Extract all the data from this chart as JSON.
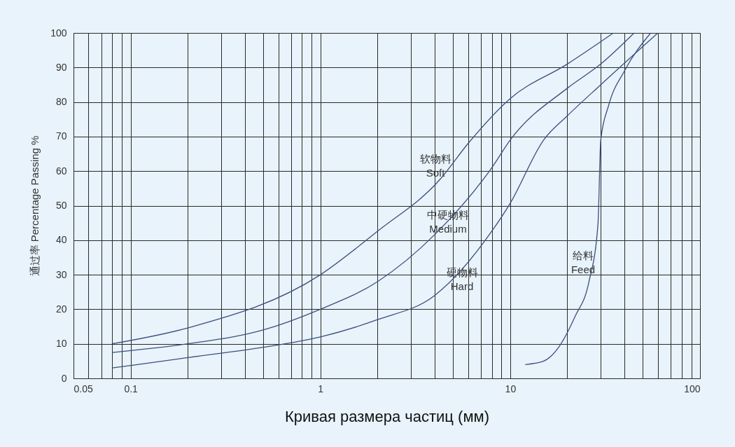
{
  "chart_data": {
    "type": "line",
    "xlabel": "Кривая размера частиц (мм)",
    "ylabel": "通过率 Percentage Passing %",
    "log": "x",
    "grid": true,
    "line_style": "solid",
    "marker": "none",
    "xlim": [
      0.05,
      100
    ],
    "xticks": [
      0.05,
      {
        "value": 0.06,
        "label": null
      },
      {
        "value": 0.07,
        "label": null
      },
      {
        "value": 0.08,
        "label": null
      },
      {
        "value": 0.09,
        "label": null
      },
      0.1,
      {
        "value": 0.2,
        "label": null
      },
      {
        "value": 0.3,
        "label": null
      },
      {
        "value": 0.4,
        "label": null
      },
      {
        "value": 0.5,
        "label": null
      },
      {
        "value": 0.6,
        "label": null
      },
      {
        "value": 0.7,
        "label": null
      },
      {
        "value": 0.8,
        "label": null
      },
      {
        "value": 0.9,
        "label": null
      },
      1,
      {
        "value": 2,
        "label": null
      },
      {
        "value": 3,
        "label": null
      },
      {
        "value": 4,
        "label": null
      },
      {
        "value": 5,
        "label": null
      },
      {
        "value": 6,
        "label": null
      },
      {
        "value": 7,
        "label": null
      },
      {
        "value": 8,
        "label": null
      },
      {
        "value": 9,
        "label": null
      },
      10,
      {
        "value": 20,
        "label": null
      },
      {
        "value": 30,
        "label": null
      },
      {
        "value": 40,
        "label": null
      },
      {
        "value": 50,
        "label": null
      },
      {
        "value": 60,
        "label": null
      },
      {
        "value": 70,
        "label": null
      },
      {
        "value": 80,
        "label": null
      },
      {
        "value": 90,
        "label": null
      },
      100
    ],
    "ylim": [
      0,
      100
    ],
    "yticks": [
      0,
      10,
      20,
      30,
      40,
      50,
      60,
      70,
      80,
      90,
      100
    ],
    "series": [
      {
        "color": "#3d4f7c",
        "x": [
          0.08,
          0.2,
          1,
          2,
          4.3,
          6,
          10,
          20,
          35
        ],
        "values": [
          10,
          14.6,
          30,
          42.6,
          57.8,
          68,
          81,
          91,
          100
        ]
      },
      {
        "color": "#3d4f7c",
        "x": [
          0.08,
          0.2,
          0.5,
          1,
          2,
          4,
          8,
          10,
          20,
          30,
          45
        ],
        "values": [
          7.5,
          10,
          14,
          20,
          28,
          41.6,
          61,
          69,
          84,
          91,
          100
        ]
      },
      {
        "color": "#3d4f7c",
        "x": [
          0.08,
          0.2,
          0.5,
          1,
          2,
          4,
          8,
          10,
          15,
          20,
          30,
          60
        ],
        "values": [
          3,
          6,
          9,
          12,
          17,
          24,
          42.6,
          50.7,
          69,
          76,
          85,
          100
        ]
      },
      {
        "color": "#3d4f7c",
        "x": [
          12,
          15,
          18,
          22,
          26,
          29,
          30,
          33,
          40,
          55
        ],
        "values": [
          4,
          5,
          9,
          18,
          28,
          44.6,
          69,
          79,
          89,
          100
        ]
      }
    ],
    "annotations": [
      "软物料\nSoft",
      "中硬物料\nMedium",
      "硬物料\nHard",
      "给料\nFeed"
    ]
  }
}
